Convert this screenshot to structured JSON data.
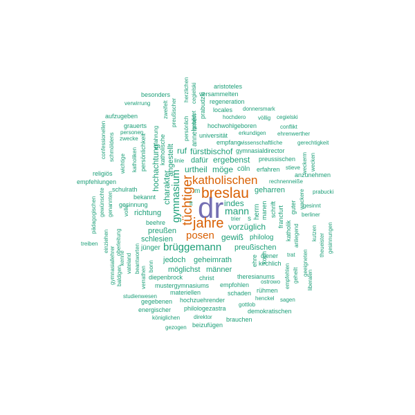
{
  "palette": {
    "purple": "#7570b3",
    "orange": "#d95f02",
    "teal": "#1b9e77"
  },
  "words": [
    {
      "text": "dr",
      "color": "purple"
    },
    {
      "text": "breslau",
      "color": "orange"
    },
    {
      "text": "katholischen",
      "color": "orange"
    },
    {
      "text": "jahre",
      "color": "orange"
    },
    {
      "text": "tüchtiger",
      "color": "orange"
    },
    {
      "text": "posen",
      "color": "orange"
    },
    {
      "text": "aristoteles",
      "color": "teal"
    },
    {
      "text": "besonders",
      "color": "teal"
    },
    {
      "text": "versammelten",
      "color": "teal"
    },
    {
      "text": "verwirrung",
      "color": "teal"
    },
    {
      "text": "regeneration",
      "color": "teal"
    },
    {
      "text": "locales",
      "color": "teal"
    },
    {
      "text": "donnersmark",
      "color": "teal"
    },
    {
      "text": "aufzugeben",
      "color": "teal"
    },
    {
      "text": "hochdero",
      "color": "teal"
    },
    {
      "text": "völlig",
      "color": "teal"
    },
    {
      "text": "cegielski",
      "color": "teal"
    },
    {
      "text": "personen",
      "color": "teal"
    },
    {
      "text": "grauerts",
      "color": "teal"
    },
    {
      "text": "hochwohlgeboren",
      "color": "teal"
    },
    {
      "text": "conflikt",
      "color": "teal"
    },
    {
      "text": "universität",
      "color": "teal"
    },
    {
      "text": "erkundigen",
      "color": "teal"
    },
    {
      "text": "ehrenwerther",
      "color": "teal"
    },
    {
      "text": "zwecke",
      "color": "teal"
    },
    {
      "text": "empfang",
      "color": "teal"
    },
    {
      "text": "wissenschaftliche",
      "color": "teal"
    },
    {
      "text": "gerechtigkeit",
      "color": "teal"
    },
    {
      "text": "ruf",
      "color": "teal"
    },
    {
      "text": "fürstbischof",
      "color": "teal"
    },
    {
      "text": "gymnasialdirector",
      "color": "teal"
    },
    {
      "text": "linie",
      "color": "teal"
    },
    {
      "text": "dafür",
      "color": "teal"
    },
    {
      "text": "ergebenst",
      "color": "teal"
    },
    {
      "text": "preussischen",
      "color": "teal"
    },
    {
      "text": "urtheil",
      "color": "teal"
    },
    {
      "text": "möge",
      "color": "teal"
    },
    {
      "text": "cöln",
      "color": "teal"
    },
    {
      "text": "erfahren",
      "color": "teal"
    },
    {
      "text": "stieve",
      "color": "teal"
    },
    {
      "text": "religiös",
      "color": "teal"
    },
    {
      "text": "anzunehmen",
      "color": "teal"
    },
    {
      "text": "empfehlungen",
      "color": "teal"
    },
    {
      "text": "rechnenneiße",
      "color": "teal"
    },
    {
      "text": "geharren",
      "color": "teal"
    },
    {
      "text": "prabucki",
      "color": "teal"
    },
    {
      "text": "schulrath",
      "color": "teal"
    },
    {
      "text": "bekannt",
      "color": "teal"
    },
    {
      "text": "indes",
      "color": "teal"
    },
    {
      "text": "mann",
      "color": "teal"
    },
    {
      "text": "gesinnung",
      "color": "teal"
    },
    {
      "text": "gesinnt",
      "color": "teal"
    },
    {
      "text": "richtung",
      "color": "teal"
    },
    {
      "text": "berliner",
      "color": "teal"
    },
    {
      "text": "beehre",
      "color": "teal"
    },
    {
      "text": "trier",
      "color": "teal"
    },
    {
      "text": "vorzüglich",
      "color": "teal"
    },
    {
      "text": "preußen",
      "color": "teal"
    },
    {
      "text": "gewiß",
      "color": "teal"
    },
    {
      "text": "philolog",
      "color": "teal"
    },
    {
      "text": "schlesien",
      "color": "teal"
    },
    {
      "text": "treiben",
      "color": "teal"
    },
    {
      "text": "jünger",
      "color": "teal"
    },
    {
      "text": "brüggemann",
      "color": "teal"
    },
    {
      "text": "preußischen",
      "color": "teal"
    },
    {
      "text": "diener",
      "color": "teal"
    },
    {
      "text": "trat",
      "color": "teal"
    },
    {
      "text": "jedoch",
      "color": "teal"
    },
    {
      "text": "geheimrath",
      "color": "teal"
    },
    {
      "text": "kirchlich",
      "color": "teal"
    },
    {
      "text": "möglichst",
      "color": "teal"
    },
    {
      "text": "männer",
      "color": "teal"
    },
    {
      "text": "diepenbrock",
      "color": "teal"
    },
    {
      "text": "christ",
      "color": "teal"
    },
    {
      "text": "theresianums",
      "color": "teal"
    },
    {
      "text": "ostrowo",
      "color": "teal"
    },
    {
      "text": "mustergymnasiums",
      "color": "teal"
    },
    {
      "text": "empfohlen",
      "color": "teal"
    },
    {
      "text": "rühmen",
      "color": "teal"
    },
    {
      "text": "materiellen",
      "color": "teal"
    },
    {
      "text": "schaden",
      "color": "teal"
    },
    {
      "text": "studienwesen",
      "color": "teal"
    },
    {
      "text": "hochzuehrender",
      "color": "teal"
    },
    {
      "text": "henckel",
      "color": "teal"
    },
    {
      "text": "sagen",
      "color": "teal"
    },
    {
      "text": "gegebenen",
      "color": "teal"
    },
    {
      "text": "gottlob",
      "color": "teal"
    },
    {
      "text": "energischer",
      "color": "teal"
    },
    {
      "text": "philologezastra",
      "color": "teal"
    },
    {
      "text": "demokratischen",
      "color": "teal"
    },
    {
      "text": "königlichen",
      "color": "teal"
    },
    {
      "text": "direktor",
      "color": "teal"
    },
    {
      "text": "brauchen",
      "color": "teal"
    },
    {
      "text": "gezogen",
      "color": "teal"
    },
    {
      "text": "beizufügen",
      "color": "teal"
    },
    {
      "text": "m",
      "color": "teal"
    },
    {
      "text": "s",
      "color": "teal"
    },
    {
      "text": "lt",
      "color": "teal"
    },
    {
      "text": "gymnasium",
      "color": "teal"
    },
    {
      "text": "charakter",
      "color": "teal"
    },
    {
      "text": "hochachtung",
      "color": "teal"
    },
    {
      "text": "angestellt",
      "color": "teal"
    },
    {
      "text": "katholische",
      "color": "teal"
    },
    {
      "text": "persönlichkeit",
      "color": "teal"
    },
    {
      "text": "katholiken",
      "color": "teal"
    },
    {
      "text": "wichtige",
      "color": "teal"
    },
    {
      "text": "confessionellen",
      "color": "teal"
    },
    {
      "text": "schmöldens",
      "color": "teal"
    },
    {
      "text": "erfahrung",
      "color": "teal"
    },
    {
      "text": "zweifelt",
      "color": "teal"
    },
    {
      "text": "preußischer",
      "color": "teal"
    },
    {
      "text": "persönlich",
      "color": "teal"
    },
    {
      "text": "herzlichen",
      "color": "teal"
    },
    {
      "text": "gebildet",
      "color": "teal"
    },
    {
      "text": "cegielski",
      "color": "teal"
    },
    {
      "text": "prabudzki",
      "color": "teal"
    },
    {
      "text": "annehmen",
      "color": "teal"
    },
    {
      "text": "herrn",
      "color": "teal"
    },
    {
      "text": "manen",
      "color": "teal"
    },
    {
      "text": "schrift",
      "color": "teal"
    },
    {
      "text": "francfurt",
      "color": "teal"
    },
    {
      "text": "koch",
      "color": "teal"
    },
    {
      "text": "ehre",
      "color": "teal"
    },
    {
      "text": "katholik",
      "color": "teal"
    },
    {
      "text": "anliegend",
      "color": "teal"
    },
    {
      "text": "guter",
      "color": "teal"
    },
    {
      "text": "wackere",
      "color": "teal"
    },
    {
      "text": "weckerm",
      "color": "teal"
    },
    {
      "text": "wecken",
      "color": "teal"
    },
    {
      "text": "empfehlen",
      "color": "teal"
    },
    {
      "text": "geheilt",
      "color": "teal"
    },
    {
      "text": "geeigneten",
      "color": "teal"
    },
    {
      "text": "liberalen",
      "color": "teal"
    },
    {
      "text": "kutzen",
      "color": "teal"
    },
    {
      "text": "theueister",
      "color": "teal"
    },
    {
      "text": "gesinnungen",
      "color": "teal"
    },
    {
      "text": "pädagogischen",
      "color": "teal"
    },
    {
      "text": "gewünschte",
      "color": "teal"
    },
    {
      "text": "genannten",
      "color": "teal"
    },
    {
      "text": "volle",
      "color": "teal"
    },
    {
      "text": "oberleitung",
      "color": "teal"
    },
    {
      "text": "einziehen",
      "color": "teal"
    },
    {
      "text": "gymnasiallehrer",
      "color": "teal"
    },
    {
      "text": "kenne",
      "color": "teal"
    },
    {
      "text": "baldigen",
      "color": "teal"
    },
    {
      "text": "vateland",
      "color": "teal"
    },
    {
      "text": "beantworten",
      "color": "teal"
    },
    {
      "text": "verrathen",
      "color": "teal"
    },
    {
      "text": "bonn",
      "color": "teal"
    }
  ]
}
